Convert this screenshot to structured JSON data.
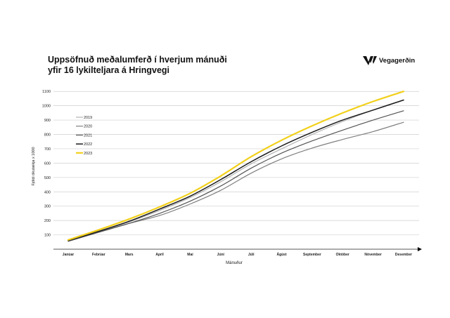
{
  "title_line1": "Uppsöfnuð meðalumferð í hverjum mánuði",
  "title_line2": "yfir 16 lykilteljara á Hringvegi",
  "logo_text": "Vegagerðin",
  "chart_data": {
    "type": "line",
    "title": "Uppsöfnuð meðalumferð í hverjum mánuði yfir 16 lykilteljara á Hringvegi",
    "xlabel": "Mánuður",
    "ylabel": "Fjöldi ökutækja x 1000",
    "categories": [
      "Janúar",
      "Febrúar",
      "Mars",
      "Apríl",
      "Maí",
      "Júní",
      "Júlí",
      "Ágúst",
      "September",
      "Október",
      "Nóvember",
      "Desember"
    ],
    "yticks": [
      100,
      200,
      300,
      400,
      500,
      600,
      700,
      800,
      900,
      1000,
      1100
    ],
    "ylim": [
      0,
      1150
    ],
    "grid": true,
    "legend_position": "upper-left",
    "series": [
      {
        "name": "2019",
        "color": "#b3b3b3",
        "width": 1.2,
        "values": [
          60,
          125,
          190,
          270,
          360,
          470,
          595,
          700,
          800,
          890,
          970,
          1040
        ]
      },
      {
        "name": "2020",
        "color": "#808080",
        "width": 1.2,
        "values": [
          60,
          120,
          180,
          235,
          315,
          410,
          530,
          630,
          705,
          765,
          820,
          885
        ]
      },
      {
        "name": "2021",
        "color": "#555555",
        "width": 1.2,
        "values": [
          55,
          118,
          180,
          250,
          335,
          440,
          565,
          670,
          755,
          830,
          900,
          965
        ]
      },
      {
        "name": "2022",
        "color": "#1a1a1a",
        "width": 1.5,
        "values": [
          60,
          125,
          195,
          280,
          370,
          485,
          610,
          720,
          815,
          900,
          970,
          1040
        ]
      },
      {
        "name": "2023",
        "color": "#f2d01b",
        "width": 2.2,
        "values": [
          65,
          135,
          210,
          295,
          390,
          510,
          645,
          760,
          860,
          950,
          1030,
          1100
        ]
      }
    ]
  }
}
